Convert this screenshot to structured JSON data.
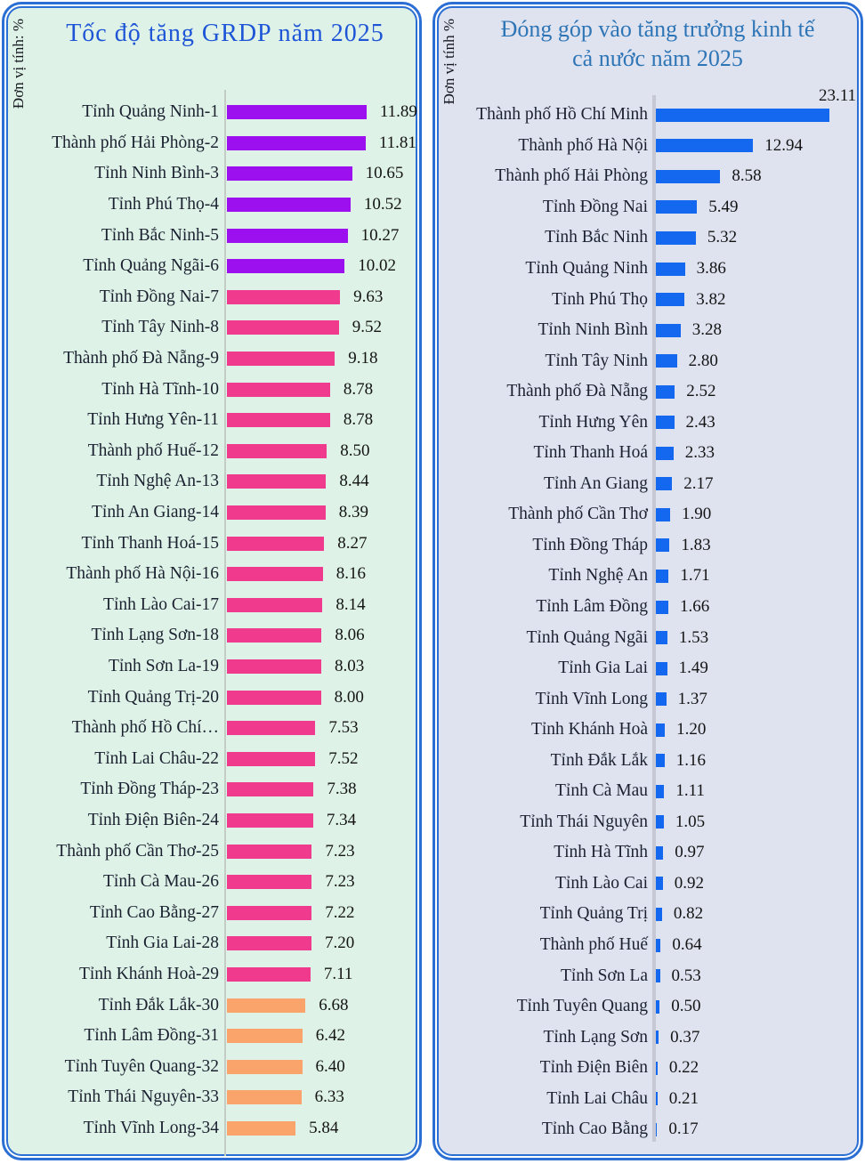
{
  "frame": {
    "border_color": "#2B6FD4"
  },
  "chart_data": [
    {
      "id": "grdp-growth",
      "type": "bar",
      "orientation": "horizontal",
      "title": "Tốc độ tăng GRDP năm 2025",
      "unit_label": "Đơn vị tính: %",
      "background": "#DEF2E7",
      "title_color": "#1D55D6",
      "value_range": [
        0,
        12
      ],
      "grid": false,
      "legend": false,
      "palette": {
        "top": "#9C10EF",
        "mid": "#EF3A8D",
        "low": "#FAA36B"
      },
      "rows": [
        {
          "label": "Tỉnh Quảng Ninh-1",
          "value": 11.89,
          "display": "11.89",
          "color_key": "top"
        },
        {
          "label": "Thành phố Hải Phòng-2",
          "value": 11.81,
          "display": "11.81",
          "color_key": "top"
        },
        {
          "label": "Tỉnh Ninh Bình-3",
          "value": 10.65,
          "display": "10.65",
          "color_key": "top"
        },
        {
          "label": "Tỉnh Phú Thọ-4",
          "value": 10.52,
          "display": "10.52",
          "color_key": "top"
        },
        {
          "label": "Tỉnh Bắc Ninh-5",
          "value": 10.27,
          "display": "10.27",
          "color_key": "top"
        },
        {
          "label": "Tỉnh Quảng Ngãi-6",
          "value": 10.02,
          "display": "10.02",
          "color_key": "top"
        },
        {
          "label": "Tỉnh Đồng Nai-7",
          "value": 9.63,
          "display": "9.63",
          "color_key": "mid"
        },
        {
          "label": "Tỉnh Tây Ninh-8",
          "value": 9.52,
          "display": "9.52",
          "color_key": "mid"
        },
        {
          "label": "Thành phố Đà Nẵng-9",
          "value": 9.18,
          "display": "9.18",
          "color_key": "mid"
        },
        {
          "label": "Tỉnh Hà Tĩnh-10",
          "value": 8.78,
          "display": "8.78",
          "color_key": "mid"
        },
        {
          "label": "Tỉnh Hưng Yên-11",
          "value": 8.78,
          "display": "8.78",
          "color_key": "mid"
        },
        {
          "label": "Thành phố Huế-12",
          "value": 8.5,
          "display": "8.50",
          "color_key": "mid"
        },
        {
          "label": "Tỉnh Nghệ An-13",
          "value": 8.44,
          "display": "8.44",
          "color_key": "mid"
        },
        {
          "label": "Tỉnh An Giang-14",
          "value": 8.39,
          "display": "8.39",
          "color_key": "mid"
        },
        {
          "label": "Tỉnh Thanh Hoá-15",
          "value": 8.27,
          "display": "8.27",
          "color_key": "mid"
        },
        {
          "label": "Thành phố Hà Nội-16",
          "value": 8.16,
          "display": "8.16",
          "color_key": "mid"
        },
        {
          "label": "Tỉnh Lào Cai-17",
          "value": 8.14,
          "display": "8.14",
          "color_key": "mid"
        },
        {
          "label": "Tỉnh Lạng Sơn-18",
          "value": 8.06,
          "display": "8.06",
          "color_key": "mid"
        },
        {
          "label": "Tỉnh Sơn La-19",
          "value": 8.03,
          "display": "8.03",
          "color_key": "mid"
        },
        {
          "label": "Tỉnh Quảng Trị-20",
          "value": 8.0,
          "display": "8.00",
          "color_key": "mid"
        },
        {
          "label": "Thành phố Hồ Chí…",
          "value": 7.53,
          "display": "7.53",
          "color_key": "mid"
        },
        {
          "label": "Tỉnh Lai Châu-22",
          "value": 7.52,
          "display": "7.52",
          "color_key": "mid"
        },
        {
          "label": "Tỉnh Đồng Tháp-23",
          "value": 7.38,
          "display": "7.38",
          "color_key": "mid"
        },
        {
          "label": "Tỉnh Điện Biên-24",
          "value": 7.34,
          "display": "7.34",
          "color_key": "mid"
        },
        {
          "label": "Thành phố Cần Thơ-25",
          "value": 7.23,
          "display": "7.23",
          "color_key": "mid"
        },
        {
          "label": "Tỉnh Cà Mau-26",
          "value": 7.23,
          "display": "7.23",
          "color_key": "mid"
        },
        {
          "label": "Tỉnh Cao Bằng-27",
          "value": 7.22,
          "display": "7.22",
          "color_key": "mid"
        },
        {
          "label": "Tỉnh Gia Lai-28",
          "value": 7.2,
          "display": "7.20",
          "color_key": "mid"
        },
        {
          "label": "Tỉnh Khánh Hoà-29",
          "value": 7.11,
          "display": "7.11",
          "color_key": "mid"
        },
        {
          "label": "Tỉnh Đắk Lắk-30",
          "value": 6.68,
          "display": "6.68",
          "color_key": "low"
        },
        {
          "label": "Tỉnh Lâm Đồng-31",
          "value": 6.42,
          "display": "6.42",
          "color_key": "low"
        },
        {
          "label": "Tỉnh Tuyên Quang-32",
          "value": 6.4,
          "display": "6.40",
          "color_key": "low"
        },
        {
          "label": "Tỉnh Thái Nguyên-33",
          "value": 6.33,
          "display": "6.33",
          "color_key": "low"
        },
        {
          "label": "Tỉnh Vĩnh Long-34",
          "value": 5.84,
          "display": "5.84",
          "color_key": "low"
        }
      ]
    },
    {
      "id": "contribution",
      "type": "bar",
      "orientation": "horizontal",
      "title": "Đóng góp vào tăng trưởng kinh tế cả nước năm 2025",
      "title_lines": [
        "Đóng góp vào tăng trưởng kinh tế",
        "cả nước năm 2025"
      ],
      "unit_label": "Đơn vị tính %",
      "background": "#DFE3F0",
      "title_color": "#2E75B6",
      "value_range": [
        0,
        24
      ],
      "grid": false,
      "legend": false,
      "bar_color": "#1468F0",
      "rows": [
        {
          "label": "Thành phố Hồ Chí Minh",
          "value": 23.11,
          "display": "23.11",
          "label_position": "above"
        },
        {
          "label": "Thành phố Hà Nội",
          "value": 12.94,
          "display": "12.94"
        },
        {
          "label": "Thành phố Hải Phòng",
          "value": 8.58,
          "display": "8.58"
        },
        {
          "label": "Tỉnh Đồng Nai",
          "value": 5.49,
          "display": "5.49"
        },
        {
          "label": "Tỉnh Bắc Ninh",
          "value": 5.32,
          "display": "5.32"
        },
        {
          "label": "Tỉnh Quảng Ninh",
          "value": 3.86,
          "display": "3.86"
        },
        {
          "label": "Tỉnh Phú Thọ",
          "value": 3.82,
          "display": "3.82"
        },
        {
          "label": "Tỉnh Ninh Bình",
          "value": 3.28,
          "display": "3.28"
        },
        {
          "label": "Tỉnh Tây Ninh",
          "value": 2.8,
          "display": "2.80"
        },
        {
          "label": "Thành phố Đà Nẵng",
          "value": 2.52,
          "display": "2.52"
        },
        {
          "label": "Tỉnh Hưng Yên",
          "value": 2.43,
          "display": "2.43"
        },
        {
          "label": "Tỉnh Thanh Hoá",
          "value": 2.33,
          "display": "2.33"
        },
        {
          "label": "Tỉnh An Giang",
          "value": 2.17,
          "display": "2.17"
        },
        {
          "label": "Thành phố Cần Thơ",
          "value": 1.9,
          "display": "1.90"
        },
        {
          "label": "Tỉnh Đồng Tháp",
          "value": 1.83,
          "display": "1.83"
        },
        {
          "label": "Tỉnh Nghệ An",
          "value": 1.71,
          "display": "1.71"
        },
        {
          "label": "Tỉnh Lâm Đồng",
          "value": 1.66,
          "display": "1.66"
        },
        {
          "label": "Tỉnh Quảng Ngãi",
          "value": 1.53,
          "display": "1.53"
        },
        {
          "label": "Tỉnh Gia Lai",
          "value": 1.49,
          "display": "1.49"
        },
        {
          "label": "Tỉnh Vĩnh Long",
          "value": 1.37,
          "display": "1.37"
        },
        {
          "label": "Tỉnh Khánh Hoà",
          "value": 1.2,
          "display": "1.20"
        },
        {
          "label": "Tỉnh Đắk Lắk",
          "value": 1.16,
          "display": "1.16"
        },
        {
          "label": "Tỉnh Cà Mau",
          "value": 1.11,
          "display": "1.11"
        },
        {
          "label": "Tỉnh Thái Nguyên",
          "value": 1.05,
          "display": "1.05"
        },
        {
          "label": "Tỉnh Hà Tĩnh",
          "value": 0.97,
          "display": "0.97"
        },
        {
          "label": "Tỉnh Lào Cai",
          "value": 0.92,
          "display": "0.92"
        },
        {
          "label": "Tỉnh Quảng Trị",
          "value": 0.82,
          "display": "0.82"
        },
        {
          "label": "Thành phố Huế",
          "value": 0.64,
          "display": "0.64"
        },
        {
          "label": "Tỉnh Sơn La",
          "value": 0.53,
          "display": "0.53"
        },
        {
          "label": "Tỉnh Tuyên Quang",
          "value": 0.5,
          "display": "0.50"
        },
        {
          "label": "Tỉnh Lạng Sơn",
          "value": 0.37,
          "display": "0.37"
        },
        {
          "label": "Tỉnh Điện Biên",
          "value": 0.22,
          "display": "0.22"
        },
        {
          "label": "Tỉnh Lai Châu",
          "value": 0.21,
          "display": "0.21"
        },
        {
          "label": "Tỉnh Cao Bằng",
          "value": 0.17,
          "display": "0.17"
        }
      ]
    }
  ]
}
